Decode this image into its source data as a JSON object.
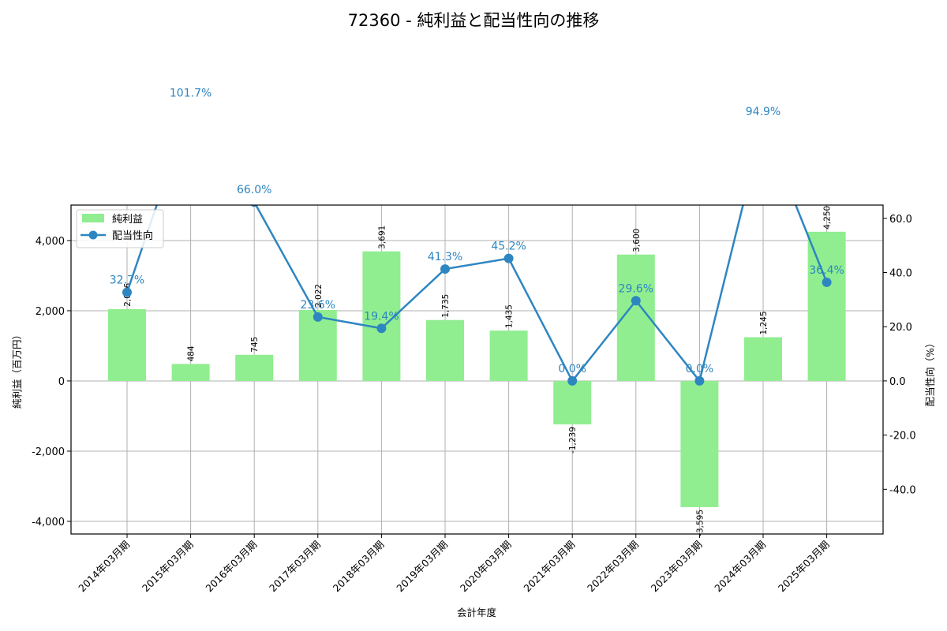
{
  "chart_data": {
    "type": "bar+line",
    "title": "72360 - 純利益と配当性向の推移",
    "xlabel": "会計年度",
    "ylabel": "純利益（百万円）",
    "y2label": "配当性向（%）",
    "categories": [
      "2014年03月期",
      "2015年03月期",
      "2016年03月期",
      "2017年03月期",
      "2018年03月期",
      "2019年03月期",
      "2020年03月期",
      "2021年03月期",
      "2022年03月期",
      "2023年03月期",
      "2024年03月期",
      "2025年03月期"
    ],
    "series": [
      {
        "name": "純利益",
        "type": "bar",
        "axis": "left",
        "color": "#90ee90",
        "values": [
          2046,
          484,
          745,
          2022,
          3691,
          1735,
          1435,
          -1239,
          3600,
          -3595,
          1245,
          4250
        ],
        "labels": [
          "2,046",
          "484",
          "745",
          "2,022",
          "3,691",
          "1,735",
          "1,435",
          "-1,239",
          "3,600",
          "-3,595",
          "1,245",
          "4,250"
        ]
      },
      {
        "name": "配当性向",
        "type": "line",
        "axis": "right",
        "color": "#2e86c1",
        "values": [
          32.7,
          101.7,
          66.0,
          23.6,
          19.4,
          41.3,
          45.2,
          0.0,
          29.6,
          0.0,
          94.9,
          36.4
        ],
        "labels": [
          "32.7%",
          "101.7%",
          "66.0%",
          "23.6%",
          "19.4%",
          "41.3%",
          "45.2%",
          "0.0%",
          "29.6%",
          "0.0%",
          "94.9%",
          "36.4%"
        ]
      }
    ],
    "ylim": [
      -4360,
      5010
    ],
    "y2lim": [
      -56.5,
      64.9
    ],
    "yticks": [
      -4000,
      -2000,
      0,
      2000,
      4000
    ],
    "ytick_labels": [
      "-4,000",
      "-2,000",
      "0",
      "2,000",
      "4,000"
    ],
    "y2ticks": [
      -40,
      -20,
      0,
      20,
      40,
      60
    ],
    "y2tick_labels": [
      "-40.0",
      "-20.0",
      "0.0",
      "20.0",
      "40.0",
      "60.0"
    ],
    "grid": true,
    "legend_position": "upper left"
  },
  "legend": {
    "items": [
      {
        "label": "純利益",
        "color": "#90ee90"
      },
      {
        "label": "配当性向",
        "color": "#2e86c1"
      }
    ]
  }
}
